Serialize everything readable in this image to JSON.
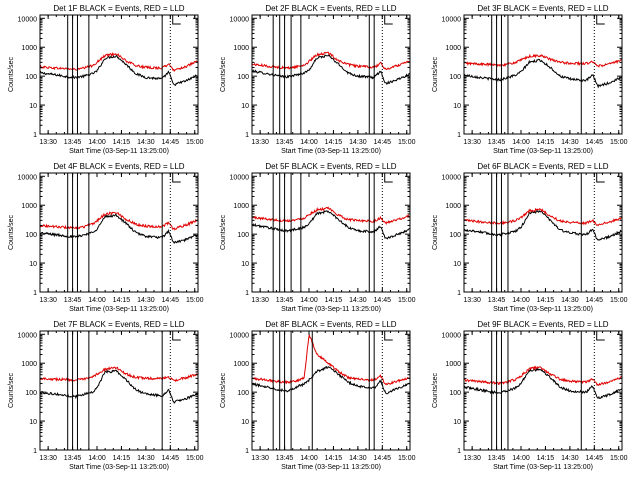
{
  "figure": {
    "ylabel": "Counts/sec",
    "xlabel": "Start Time (03-Sep-11 13:25:00)",
    "colors": {
      "events": "#000000",
      "lld": "#e00000",
      "axes": "#000000"
    }
  },
  "chart_data": [
    {
      "type": "line",
      "title": "Det 1F BLACK = Events, RED = LLD",
      "xlabel": "Start Time (03-Sep-11 13:25:00)",
      "ylabel": "Counts/sec",
      "x_ticks": [
        "13:30",
        "13:45",
        "14:00",
        "14:15",
        "14:30",
        "14:45",
        "15:00"
      ],
      "y_ticks": [
        "1",
        "10",
        "100",
        "1000",
        "10000"
      ],
      "xlim": [
        "13:25",
        "15:02"
      ],
      "ylim": [
        1,
        13000
      ],
      "y_scale": "log",
      "x": [
        "13:25",
        "13:35",
        "13:42",
        "13:47",
        "13:52",
        "13:57",
        "14:00",
        "14:05",
        "14:12",
        "14:18",
        "14:24",
        "14:30",
        "14:40",
        "14:44",
        "14:47",
        "14:55",
        "15:02"
      ],
      "series": [
        {
          "name": "Events",
          "color": "#000000",
          "values": [
            130,
            110,
            95,
            90,
            100,
            120,
            150,
            420,
            500,
            250,
            120,
            90,
            80,
            140,
            50,
            70,
            110
          ]
        },
        {
          "name": "LLD",
          "color": "#e00000",
          "values": [
            210,
            190,
            180,
            170,
            190,
            230,
            300,
            520,
            600,
            330,
            230,
            200,
            190,
            260,
            160,
            220,
            330
          ]
        }
      ],
      "vlines": [
        "13:42",
        "13:45",
        "13:48",
        "13:55",
        "14:40"
      ],
      "dotted_vlines": [
        "14:45"
      ]
    },
    {
      "type": "line",
      "title": "Det 2F BLACK = Events, RED = LLD",
      "xlabel": "Start Time (03-Sep-11 13:25:00)",
      "ylabel": "Counts/sec",
      "x_ticks": [
        "13:30",
        "13:45",
        "14:00",
        "14:15",
        "14:30",
        "14:45",
        "15:00"
      ],
      "y_ticks": [
        "1",
        "10",
        "100",
        "1000",
        "10000"
      ],
      "xlim": [
        "13:25",
        "15:02"
      ],
      "ylim": [
        1,
        13000
      ],
      "y_scale": "log",
      "x": [
        "13:25",
        "13:35",
        "13:42",
        "13:47",
        "13:52",
        "13:57",
        "14:00",
        "14:05",
        "14:12",
        "14:18",
        "14:24",
        "14:30",
        "14:40",
        "14:44",
        "14:47",
        "14:55",
        "15:02"
      ],
      "series": [
        {
          "name": "Events",
          "color": "#000000",
          "values": [
            150,
            120,
            100,
            95,
            110,
            130,
            160,
            430,
            520,
            260,
            130,
            100,
            90,
            150,
            55,
            80,
            120
          ]
        },
        {
          "name": "LLD",
          "color": "#e00000",
          "values": [
            260,
            220,
            200,
            190,
            210,
            240,
            320,
            560,
            640,
            350,
            250,
            220,
            200,
            280,
            170,
            240,
            350
          ]
        }
      ],
      "vlines": [
        "13:38",
        "13:42",
        "13:45",
        "13:49",
        "13:55",
        "14:37",
        "14:40"
      ],
      "dotted_vlines": [
        "14:45"
      ]
    },
    {
      "type": "line",
      "title": "Det 3F BLACK = Events, RED = LLD",
      "xlabel": "Start Time (03-Sep-11 13:25:00)",
      "ylabel": "Counts/sec",
      "x_ticks": [
        "13:30",
        "13:45",
        "14:00",
        "14:15",
        "14:30",
        "14:45",
        "15:00"
      ],
      "y_ticks": [
        "1",
        "10",
        "100",
        "1000",
        "10000"
      ],
      "xlim": [
        "13:25",
        "15:02"
      ],
      "ylim": [
        1,
        13000
      ],
      "y_scale": "log",
      "x": [
        "13:25",
        "13:35",
        "13:42",
        "13:47",
        "13:52",
        "13:57",
        "14:00",
        "14:05",
        "14:12",
        "14:18",
        "14:24",
        "14:30",
        "14:40",
        "14:44",
        "14:47",
        "14:55",
        "15:02"
      ],
      "series": [
        {
          "name": "Events",
          "color": "#000000",
          "values": [
            110,
            90,
            80,
            75,
            90,
            110,
            140,
            300,
            360,
            200,
            100,
            80,
            70,
            110,
            45,
            60,
            95
          ]
        },
        {
          "name": "LLD",
          "color": "#e00000",
          "values": [
            280,
            260,
            250,
            240,
            260,
            300,
            360,
            480,
            520,
            380,
            300,
            280,
            270,
            320,
            220,
            270,
            350
          ]
        }
      ],
      "vlines": [
        "13:42",
        "13:45",
        "13:48",
        "13:52",
        "14:37"
      ],
      "dotted_vlines": [
        "14:45"
      ]
    },
    {
      "type": "line",
      "title": "Det 4F BLACK = Events, RED = LLD",
      "xlabel": "Start Time (03-Sep-11 13:25:00)",
      "ylabel": "Counts/sec",
      "x_ticks": [
        "13:30",
        "13:45",
        "14:00",
        "14:15",
        "14:30",
        "14:45",
        "15:00"
      ],
      "y_ticks": [
        "1",
        "10",
        "100",
        "1000",
        "10000"
      ],
      "xlim": [
        "13:25",
        "15:02"
      ],
      "ylim": [
        1,
        13000
      ],
      "y_scale": "log",
      "x": [
        "13:25",
        "13:35",
        "13:42",
        "13:47",
        "13:52",
        "13:57",
        "14:00",
        "14:05",
        "14:12",
        "14:18",
        "14:24",
        "14:30",
        "14:40",
        "14:44",
        "14:47",
        "14:55",
        "15:02"
      ],
      "series": [
        {
          "name": "Events",
          "color": "#000000",
          "values": [
            110,
            95,
            85,
            80,
            95,
            115,
            150,
            400,
            450,
            230,
            110,
            85,
            75,
            130,
            50,
            65,
            100
          ]
        },
        {
          "name": "LLD",
          "color": "#e00000",
          "values": [
            200,
            180,
            170,
            160,
            180,
            220,
            290,
            500,
            560,
            320,
            220,
            190,
            180,
            250,
            150,
            210,
            310
          ]
        }
      ],
      "vlines": [
        "13:42",
        "13:45",
        "13:48",
        "13:55",
        "14:40"
      ],
      "dotted_vlines": [
        "14:45"
      ]
    },
    {
      "type": "line",
      "title": "Det 5F BLACK = Events, RED = LLD",
      "xlabel": "Start Time (03-Sep-11 13:25:00)",
      "ylabel": "Counts/sec",
      "x_ticks": [
        "13:30",
        "13:45",
        "14:00",
        "14:15",
        "14:30",
        "14:45",
        "15:00"
      ],
      "y_ticks": [
        "1",
        "10",
        "100",
        "1000",
        "10000"
      ],
      "xlim": [
        "13:25",
        "15:02"
      ],
      "ylim": [
        1,
        13000
      ],
      "y_scale": "log",
      "x": [
        "13:25",
        "13:35",
        "13:42",
        "13:47",
        "13:52",
        "13:57",
        "14:00",
        "14:05",
        "14:12",
        "14:18",
        "14:24",
        "14:30",
        "14:40",
        "14:44",
        "14:47",
        "14:55",
        "15:02"
      ],
      "series": [
        {
          "name": "Events",
          "color": "#000000",
          "values": [
            210,
            170,
            140,
            130,
            150,
            170,
            230,
            520,
            620,
            330,
            170,
            130,
            120,
            190,
            70,
            100,
            150
          ]
        },
        {
          "name": "LLD",
          "color": "#e00000",
          "values": [
            380,
            330,
            300,
            290,
            310,
            360,
            480,
            700,
            780,
            450,
            320,
            300,
            280,
            360,
            240,
            320,
            430
          ]
        }
      ],
      "vlines": [
        "13:38",
        "13:42",
        "13:45",
        "13:49",
        "13:55",
        "14:37",
        "14:40"
      ],
      "dotted_vlines": [
        "14:45"
      ]
    },
    {
      "type": "line",
      "title": "Det 6F BLACK = Events, RED = LLD",
      "xlabel": "Start Time (03-Sep-11 13:25:00)",
      "ylabel": "Counts/sec",
      "x_ticks": [
        "13:30",
        "13:45",
        "14:00",
        "14:15",
        "14:30",
        "14:45",
        "15:00"
      ],
      "y_ticks": [
        "1",
        "10",
        "100",
        "1000",
        "10000"
      ],
      "xlim": [
        "13:25",
        "15:02"
      ],
      "ylim": [
        1,
        13000
      ],
      "y_scale": "log",
      "x": [
        "13:25",
        "13:35",
        "13:42",
        "13:47",
        "13:52",
        "13:57",
        "14:00",
        "14:05",
        "14:12",
        "14:18",
        "14:24",
        "14:30",
        "14:40",
        "14:44",
        "14:47",
        "14:55",
        "15:02"
      ],
      "series": [
        {
          "name": "Events",
          "color": "#000000",
          "values": [
            140,
            120,
            100,
            95,
            110,
            130,
            170,
            520,
            640,
            300,
            140,
            110,
            95,
            150,
            60,
            85,
            130
          ]
        },
        {
          "name": "LLD",
          "color": "#e00000",
          "values": [
            300,
            270,
            250,
            240,
            260,
            300,
            380,
            640,
            720,
            420,
            290,
            260,
            240,
            300,
            200,
            270,
            360
          ]
        }
      ],
      "vlines": [
        "13:42",
        "13:45",
        "13:48",
        "13:52",
        "14:37"
      ],
      "dotted_vlines": [
        "14:45"
      ]
    },
    {
      "type": "line",
      "title": "Det 7F BLACK = Events, RED = LLD",
      "xlabel": "Start Time (03-Sep-11 13:25:00)",
      "ylabel": "Counts/sec",
      "x_ticks": [
        "13:30",
        "13:45",
        "14:00",
        "14:15",
        "14:30",
        "14:45",
        "15:00"
      ],
      "y_ticks": [
        "1",
        "10",
        "100",
        "1000",
        "10000"
      ],
      "xlim": [
        "13:25",
        "15:02"
      ],
      "ylim": [
        1,
        13000
      ],
      "y_scale": "log",
      "x": [
        "13:25",
        "13:35",
        "13:42",
        "13:47",
        "13:52",
        "13:57",
        "14:00",
        "14:05",
        "14:12",
        "14:18",
        "14:24",
        "14:30",
        "14:40",
        "14:44",
        "14:47",
        "14:55",
        "15:02"
      ],
      "series": [
        {
          "name": "Events",
          "color": "#000000",
          "values": [
            100,
            85,
            75,
            70,
            85,
            100,
            140,
            500,
            540,
            260,
            120,
            85,
            75,
            120,
            45,
            60,
            95
          ]
        },
        {
          "name": "LLD",
          "color": "#e00000",
          "values": [
            300,
            280,
            270,
            260,
            280,
            320,
            420,
            620,
            700,
            420,
            320,
            300,
            290,
            340,
            250,
            320,
            420
          ]
        }
      ],
      "vlines": [
        "13:42",
        "13:45",
        "13:48",
        "13:55",
        "14:40"
      ],
      "dotted_vlines": [
        "14:45"
      ]
    },
    {
      "type": "line",
      "title": "Det 8F BLACK = Events, RED = LLD",
      "xlabel": "Start Time (03-Sep-11 13:25:00)",
      "ylabel": "Counts/sec",
      "x_ticks": [
        "13:30",
        "13:45",
        "14:00",
        "14:15",
        "14:30",
        "14:45",
        "15:00"
      ],
      "y_ticks": [
        "1",
        "10",
        "100",
        "1000",
        "10000"
      ],
      "xlim": [
        "13:25",
        "15:02"
      ],
      "ylim": [
        1,
        13000
      ],
      "y_scale": "log",
      "x": [
        "13:25",
        "13:35",
        "13:42",
        "13:47",
        "13:52",
        "13:57",
        "14:00",
        "14:05",
        "14:12",
        "14:18",
        "14:24",
        "14:30",
        "14:40",
        "14:44",
        "14:47",
        "14:55",
        "15:02"
      ],
      "series": [
        {
          "name": "Events",
          "color": "#000000",
          "values": [
            190,
            150,
            120,
            110,
            150,
            190,
            260,
            520,
            760,
            420,
            220,
            160,
            140,
            250,
            90,
            140,
            190
          ]
        },
        {
          "name": "LLD",
          "color": "#e00000",
          "values": [
            300,
            260,
            230,
            220,
            250,
            300,
            10000,
            2000,
            1000,
            520,
            320,
            280,
            260,
            360,
            180,
            250,
            330
          ]
        }
      ],
      "vlines": [
        "13:38",
        "13:42",
        "13:45",
        "13:49",
        "14:02",
        "14:37",
        "14:40"
      ],
      "dotted_vlines": [
        "14:45"
      ]
    },
    {
      "type": "line",
      "title": "Det 9F BLACK = Events, RED = LLD",
      "xlabel": "Start Time (03-Sep-11 13:25:00)",
      "ylabel": "Counts/sec",
      "x_ticks": [
        "13:30",
        "13:45",
        "14:00",
        "14:15",
        "14:30",
        "14:45",
        "15:00"
      ],
      "y_ticks": [
        "1",
        "10",
        "100",
        "1000",
        "10000"
      ],
      "xlim": [
        "13:25",
        "15:02"
      ],
      "ylim": [
        1,
        13000
      ],
      "y_scale": "log",
      "x": [
        "13:25",
        "13:35",
        "13:42",
        "13:47",
        "13:52",
        "13:57",
        "14:00",
        "14:05",
        "14:12",
        "14:18",
        "14:24",
        "14:30",
        "14:40",
        "14:44",
        "14:47",
        "14:55",
        "15:02"
      ],
      "series": [
        {
          "name": "Events",
          "color": "#000000",
          "values": [
            150,
            120,
            100,
            95,
            115,
            140,
            200,
            560,
            620,
            320,
            150,
            110,
            100,
            160,
            60,
            85,
            130
          ]
        },
        {
          "name": "LLD",
          "color": "#e00000",
          "values": [
            260,
            230,
            210,
            200,
            230,
            280,
            360,
            640,
            720,
            420,
            280,
            240,
            220,
            280,
            180,
            240,
            330
          ]
        }
      ],
      "vlines": [
        "13:42",
        "13:45",
        "13:48",
        "13:52",
        "14:37"
      ],
      "dotted_vlines": [
        "14:45"
      ]
    }
  ]
}
